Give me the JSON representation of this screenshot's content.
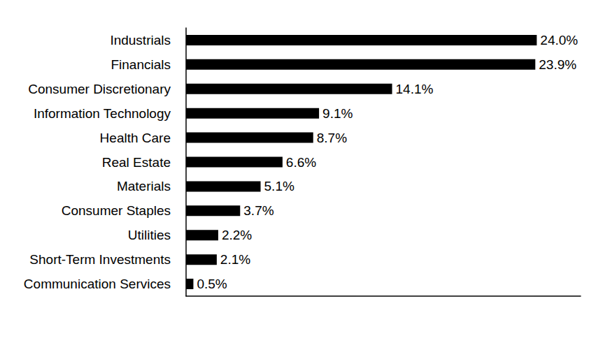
{
  "chart_data": {
    "type": "bar",
    "orientation": "horizontal",
    "categories": [
      "Industrials",
      "Financials",
      "Consumer Discretionary",
      "Information Technology",
      "Health Care",
      "Real Estate",
      "Materials",
      "Consumer Staples",
      "Utilities",
      "Short-Term Investments",
      "Communication Services"
    ],
    "values": [
      24.0,
      23.9,
      14.1,
      9.1,
      8.7,
      6.6,
      5.1,
      3.7,
      2.2,
      2.1,
      0.5
    ],
    "value_labels": [
      "24.0%",
      "23.9%",
      "14.1%",
      "9.1%",
      "8.7%",
      "6.6%",
      "5.1%",
      "3.7%",
      "2.2%",
      "2.1%",
      "0.5%"
    ],
    "color": "#000000",
    "xlim": [
      0,
      27
    ],
    "data_labels": true,
    "tick_labels": "y",
    "grid": false
  }
}
